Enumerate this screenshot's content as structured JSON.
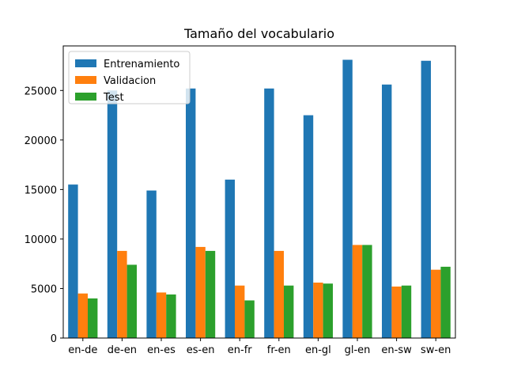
{
  "chart_data": {
    "type": "bar",
    "title": "Tamaño del vocabulario",
    "xlabel": "",
    "ylabel": "",
    "categories": [
      "en-de",
      "de-en",
      "en-es",
      "es-en",
      "en-fr",
      "fr-en",
      "en-gl",
      "gl-en",
      "en-sw",
      "sw-en"
    ],
    "series": [
      {
        "name": "Entrenamiento",
        "color": "#1f77b4",
        "values": [
          15500,
          25000,
          14900,
          25200,
          16000,
          25200,
          22500,
          28100,
          25600,
          28000
        ]
      },
      {
        "name": "Validacion",
        "color": "#ff7f0e",
        "values": [
          4500,
          8800,
          4600,
          9200,
          5300,
          8800,
          5600,
          9400,
          5200,
          6900
        ]
      },
      {
        "name": "Test",
        "color": "#2ca02c",
        "values": [
          4000,
          7400,
          4400,
          8800,
          3800,
          5300,
          5500,
          9400,
          5300,
          7200
        ]
      }
    ],
    "ylim": [
      0,
      29500
    ],
    "yticks": [
      0,
      5000,
      10000,
      15000,
      20000,
      25000
    ],
    "grid": false,
    "legend_position": "top-left"
  }
}
